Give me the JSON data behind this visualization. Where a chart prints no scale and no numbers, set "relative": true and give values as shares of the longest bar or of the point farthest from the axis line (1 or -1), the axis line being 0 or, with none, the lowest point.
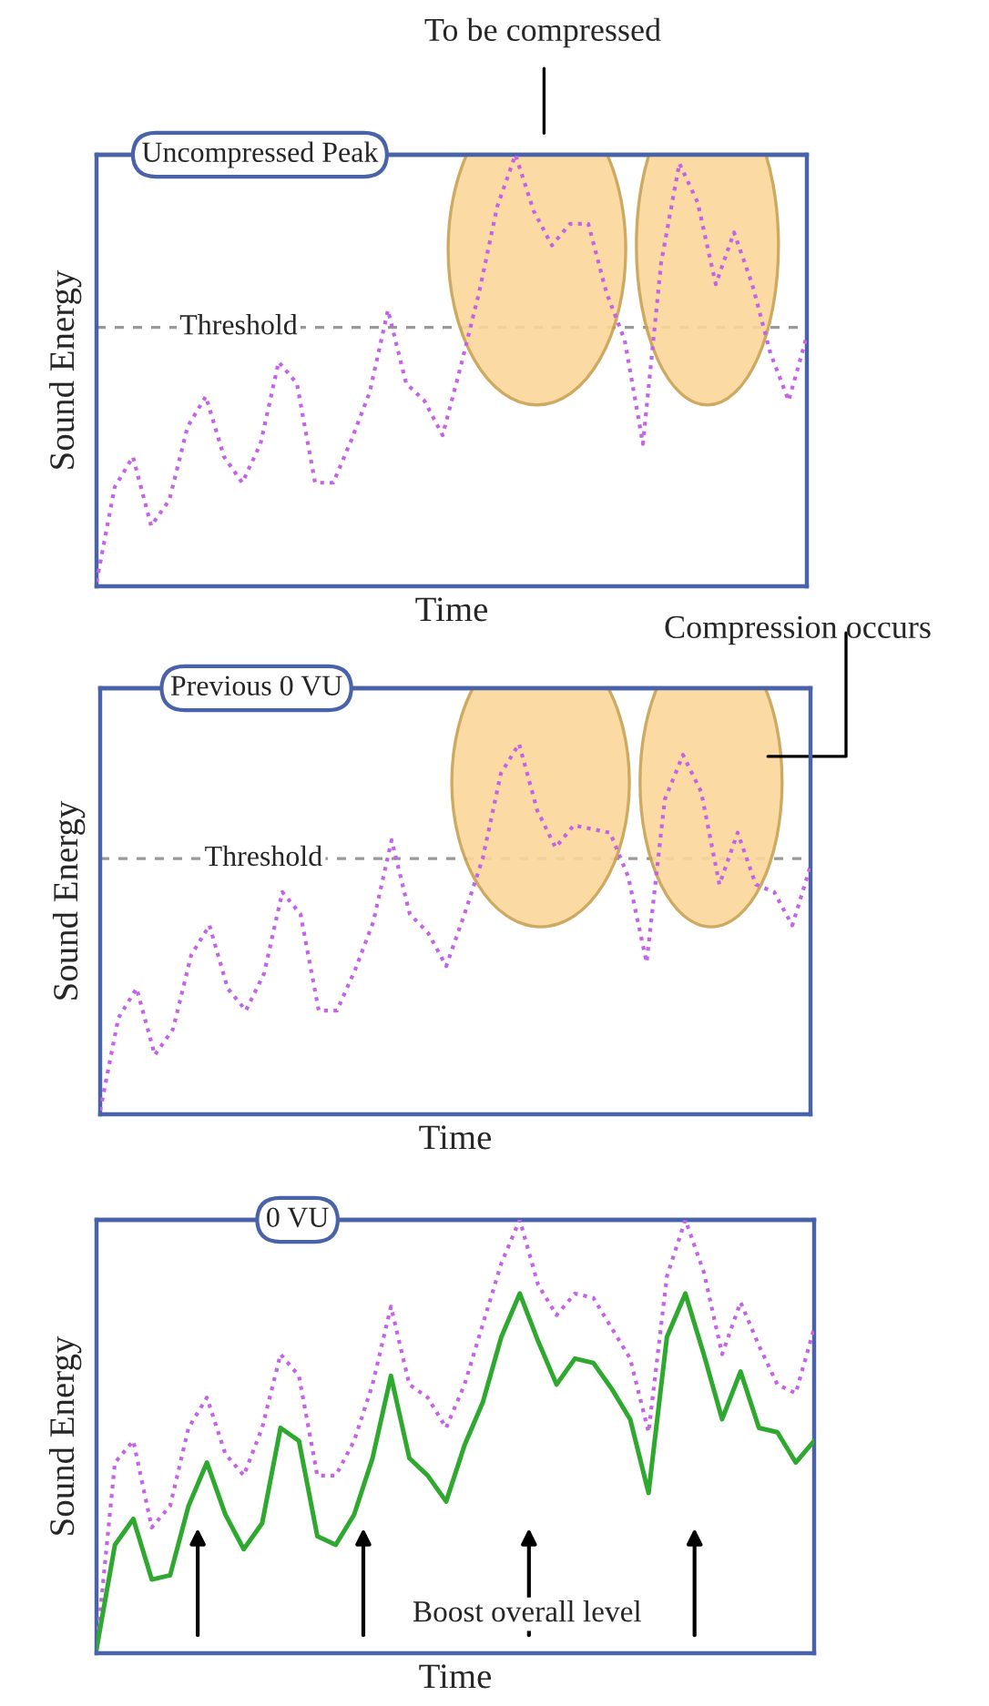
{
  "chart_data": [
    {
      "type": "line",
      "relative": true,
      "ylabel": "Sound Energy",
      "xlabel": "Time",
      "tick_labels": false,
      "marker": "none",
      "categories": [
        null,
        null,
        null,
        null,
        null,
        null,
        null,
        null,
        null,
        null,
        null,
        null,
        null,
        null,
        null,
        null,
        null,
        null,
        null,
        null,
        null,
        null,
        null,
        null,
        null,
        null,
        null,
        null,
        null,
        null,
        null,
        null,
        null,
        null,
        null,
        null,
        null,
        null,
        null,
        null
      ],
      "series": [
        {
          "color": "#c462e8",
          "line_style": "dotted",
          "values": [
            0.01,
            0.23,
            0.3,
            0.14,
            0.2,
            0.37,
            0.44,
            0.3,
            0.24,
            0.33,
            0.52,
            0.47,
            0.24,
            0.24,
            0.34,
            0.45,
            0.64,
            0.47,
            0.43,
            0.35,
            0.51,
            0.68,
            0.88,
            1.0,
            0.87,
            0.79,
            0.84,
            0.84,
            0.68,
            0.57,
            0.33,
            0.75,
            0.98,
            0.89,
            0.7,
            0.82,
            0.7,
            0.54,
            0.43,
            0.58
          ]
        }
      ],
      "ref_lines": [
        {
          "axis": "y",
          "value": 0.6,
          "label": "Threshold",
          "color": "#999999",
          "line_style": "dashed"
        },
        {
          "axis": "y",
          "value": 1.0,
          "label": "Uncompressed Peak",
          "color": "#4a62a8",
          "line_style": "solid"
        }
      ],
      "annotations": [
        "To be compressed"
      ]
    },
    {
      "type": "line",
      "relative": true,
      "ylabel": "Sound Energy",
      "xlabel": "Time",
      "tick_labels": false,
      "marker": "none",
      "categories": [
        null,
        null,
        null,
        null,
        null,
        null,
        null,
        null,
        null,
        null,
        null,
        null,
        null,
        null,
        null,
        null,
        null,
        null,
        null,
        null,
        null,
        null,
        null,
        null,
        null,
        null,
        null,
        null,
        null,
        null,
        null,
        null,
        null,
        null,
        null,
        null,
        null,
        null,
        null,
        null
      ],
      "series": [
        {
          "color": "#c462e8",
          "line_style": "dotted",
          "values": [
            0.01,
            0.26,
            0.34,
            0.16,
            0.23,
            0.43,
            0.51,
            0.34,
            0.28,
            0.38,
            0.6,
            0.54,
            0.28,
            0.28,
            0.39,
            0.52,
            0.74,
            0.54,
            0.49,
            0.4,
            0.54,
            0.69,
            0.92,
            1.0,
            0.82,
            0.72,
            0.78,
            0.77,
            0.76,
            0.64,
            0.41,
            0.85,
            0.97,
            0.87,
            0.62,
            0.76,
            0.62,
            0.6,
            0.51,
            0.67
          ]
        }
      ],
      "ref_lines": [
        {
          "axis": "y",
          "value": 0.69,
          "label": "Threshold",
          "color": "#999999",
          "line_style": "dashed"
        },
        {
          "axis": "y",
          "value": 1.15,
          "label": "Previous 0 VU",
          "color": "#4a62a8",
          "line_style": "solid"
        }
      ],
      "annotations": [
        "Compression occurs"
      ]
    },
    {
      "type": "line",
      "relative": true,
      "ylabel": "Sound Energy",
      "xlabel": "Time",
      "tick_labels": false,
      "marker": "none",
      "categories": [
        null,
        null,
        null,
        null,
        null,
        null,
        null,
        null,
        null,
        null,
        null,
        null,
        null,
        null,
        null,
        null,
        null,
        null,
        null,
        null,
        null,
        null,
        null,
        null,
        null,
        null,
        null,
        null,
        null,
        null,
        null,
        null,
        null,
        null,
        null,
        null,
        null,
        null,
        null,
        null
      ],
      "series": [
        {
          "color": "#c462e8",
          "line_style": "dotted",
          "values": [
            0.01,
            0.44,
            0.49,
            0.29,
            0.34,
            0.52,
            0.59,
            0.46,
            0.41,
            0.52,
            0.69,
            0.64,
            0.41,
            0.41,
            0.49,
            0.62,
            0.8,
            0.62,
            0.59,
            0.52,
            0.62,
            0.76,
            0.9,
            1.0,
            0.85,
            0.78,
            0.83,
            0.82,
            0.75,
            0.68,
            0.51,
            0.87,
            1.0,
            0.88,
            0.69,
            0.81,
            0.71,
            0.62,
            0.6,
            0.75
          ]
        },
        {
          "color": "#2ea82e",
          "line_style": "solid",
          "values": [
            0.01,
            0.25,
            0.31,
            0.17,
            0.18,
            0.34,
            0.44,
            0.32,
            0.24,
            0.3,
            0.52,
            0.49,
            0.27,
            0.25,
            0.32,
            0.45,
            0.64,
            0.45,
            0.41,
            0.35,
            0.48,
            0.58,
            0.73,
            0.83,
            0.72,
            0.62,
            0.68,
            0.67,
            0.61,
            0.54,
            0.37,
            0.73,
            0.83,
            0.69,
            0.54,
            0.65,
            0.52,
            0.51,
            0.44,
            0.49
          ]
        }
      ],
      "ref_lines": [
        {
          "axis": "y",
          "value": 1.0,
          "label": "0 VU",
          "color": "#4a62a8",
          "line_style": "solid"
        }
      ],
      "annotations": [
        "Boost overall level"
      ]
    }
  ]
}
